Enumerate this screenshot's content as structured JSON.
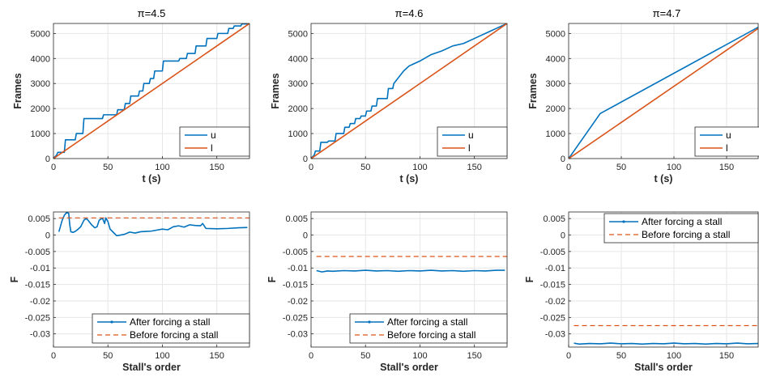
{
  "colors": {
    "blue": "#0072bd",
    "orange": "#d95319",
    "grid": "#e6e6e6",
    "axis": "#262626"
  },
  "chart_data": [
    {
      "type": "line",
      "title": "π=4.5",
      "xlabel": "t (s)",
      "ylabel": "Frames",
      "xlim": [
        0,
        180
      ],
      "ylim": [
        0,
        5400
      ],
      "xticks": [
        0,
        50,
        100,
        150
      ],
      "yticks": [
        0,
        1000,
        2000,
        3000,
        4000,
        5000
      ],
      "grid": true,
      "legend": "bottom-right",
      "series": [
        {
          "name": "u",
          "color": "#0072bd",
          "x": [
            0,
            3,
            4,
            10,
            11,
            20,
            21,
            27,
            28,
            40,
            41,
            45,
            46,
            58,
            59,
            65,
            66,
            70,
            71,
            78,
            79,
            82,
            83,
            88,
            89,
            92,
            93,
            100,
            101,
            115,
            116,
            122,
            123,
            130,
            131,
            140,
            141,
            150,
            151,
            160,
            161,
            165,
            166,
            172,
            173,
            178,
            180
          ],
          "y": [
            0,
            150,
            250,
            250,
            750,
            750,
            1000,
            1000,
            1600,
            1600,
            1600,
            1600,
            1750,
            1750,
            1950,
            1950,
            2200,
            2200,
            2500,
            2500,
            2700,
            2700,
            3000,
            3000,
            3200,
            3200,
            3500,
            3500,
            3900,
            3900,
            4000,
            4000,
            4200,
            4200,
            4500,
            4500,
            4800,
            4800,
            5000,
            5000,
            5200,
            5200,
            5300,
            5300,
            5380,
            5380,
            5400
          ]
        },
        {
          "name": "l",
          "color": "#d95319",
          "x": [
            0,
            180
          ],
          "y": [
            0,
            5400
          ]
        }
      ]
    },
    {
      "type": "line",
      "title": "π=4.6",
      "xlabel": "t (s)",
      "ylabel": "Frames",
      "xlim": [
        0,
        180
      ],
      "ylim": [
        0,
        5400
      ],
      "xticks": [
        0,
        50,
        100,
        150
      ],
      "yticks": [
        0,
        1000,
        2000,
        3000,
        4000,
        5000
      ],
      "grid": true,
      "legend": "bottom-right",
      "series": [
        {
          "name": "u",
          "color": "#0072bd",
          "x": [
            0,
            3,
            4,
            8,
            9,
            15,
            16,
            22,
            23,
            30,
            31,
            35,
            36,
            40,
            41,
            45,
            46,
            50,
            51,
            55,
            56,
            60,
            61,
            70,
            71,
            75,
            76,
            85,
            90,
            100,
            110,
            120,
            125,
            130,
            140,
            150,
            155,
            160,
            165,
            170,
            175,
            180
          ],
          "y": [
            0,
            150,
            300,
            300,
            650,
            650,
            700,
            700,
            1000,
            1000,
            1250,
            1250,
            1400,
            1400,
            1600,
            1600,
            1700,
            1700,
            1900,
            1900,
            2100,
            2100,
            2400,
            2400,
            2800,
            2800,
            3000,
            3500,
            3700,
            3900,
            4150,
            4300,
            4400,
            4500,
            4600,
            4800,
            4900,
            5000,
            5100,
            5200,
            5300,
            5400
          ]
        },
        {
          "name": "l",
          "color": "#d95319",
          "x": [
            0,
            180
          ],
          "y": [
            0,
            5400
          ]
        }
      ]
    },
    {
      "type": "line",
      "title": "π=4.7",
      "xlabel": "t (s)",
      "ylabel": "Frames",
      "xlim": [
        0,
        180
      ],
      "ylim": [
        0,
        5400
      ],
      "xticks": [
        0,
        50,
        100,
        150
      ],
      "yticks": [
        0,
        1000,
        2000,
        3000,
        4000,
        5000
      ],
      "grid": true,
      "legend": "bottom-right",
      "series": [
        {
          "name": "u",
          "color": "#0072bd",
          "x": [
            0,
            30,
            180
          ],
          "y": [
            0,
            1800,
            5250
          ]
        },
        {
          "name": "l",
          "color": "#d95319",
          "x": [
            0,
            180
          ],
          "y": [
            0,
            5200
          ]
        }
      ]
    },
    {
      "type": "line",
      "title": "",
      "xlabel": "Stall's order",
      "ylabel": "F",
      "xlim": [
        0,
        180
      ],
      "ylim": [
        -0.034,
        0.007
      ],
      "xticks": [
        0,
        50,
        100,
        150
      ],
      "yticks": [
        0.005,
        0,
        -0.005,
        -0.01,
        -0.015,
        -0.02,
        -0.025,
        -0.03
      ],
      "ytick_labels": [
        "0.005",
        "0",
        "-0.005",
        "-0.01",
        "-0.015",
        "-0.02",
        "-0.025",
        "-0.03"
      ],
      "grid": true,
      "legend": "bottom-center",
      "series": [
        {
          "name": "After forcing a stall",
          "color": "#0072bd",
          "style": "solid-dots",
          "x": [
            5,
            8,
            10,
            12,
            14,
            15,
            16,
            18,
            20,
            22,
            25,
            28,
            30,
            32,
            35,
            38,
            40,
            42,
            45,
            47,
            48,
            50,
            52,
            55,
            58,
            60,
            65,
            70,
            75,
            80,
            85,
            90,
            95,
            100,
            105,
            110,
            115,
            120,
            125,
            130,
            135,
            137,
            140,
            150,
            160,
            170,
            178
          ],
          "y": [
            0.001,
            0.0045,
            0.006,
            0.0068,
            0.0066,
            0.003,
            0.001,
            0.0008,
            0.0011,
            0.0016,
            0.0025,
            0.0045,
            0.005,
            0.0044,
            0.0031,
            0.0022,
            0.0025,
            0.0045,
            0.0051,
            0.0035,
            0.0052,
            0.0041,
            0.0018,
            0.0008,
            -0.0002,
            -0.0001,
            0.0002,
            0.0009,
            0.0006,
            0.001,
            0.0011,
            0.0012,
            0.0015,
            0.0018,
            0.0016,
            0.0025,
            0.0028,
            0.0024,
            0.0031,
            0.0029,
            0.0028,
            0.0035,
            0.002,
            0.0019,
            0.002,
            0.0022,
            0.0023
          ]
        },
        {
          "name": "Before forcing a stall",
          "color": "#d95319",
          "style": "dashed",
          "x": [
            5,
            180
          ],
          "y": [
            0.0052,
            0.0052
          ]
        }
      ]
    },
    {
      "type": "line",
      "title": "",
      "xlabel": "Stall's order",
      "ylabel": "F",
      "xlim": [
        0,
        180
      ],
      "ylim": [
        -0.034,
        0.007
      ],
      "xticks": [
        0,
        50,
        100,
        150
      ],
      "yticks": [
        0.005,
        0,
        -0.005,
        -0.01,
        -0.015,
        -0.02,
        -0.025,
        -0.03
      ],
      "ytick_labels": [
        "0.005",
        "0",
        "-0.005",
        "-0.01",
        "-0.015",
        "-0.02",
        "-0.025",
        "-0.03"
      ],
      "grid": true,
      "legend": "bottom-center",
      "series": [
        {
          "name": "After forcing a stall",
          "color": "#0072bd",
          "style": "solid-dots",
          "x": [
            5,
            10,
            15,
            20,
            30,
            40,
            50,
            60,
            70,
            80,
            90,
            100,
            110,
            120,
            130,
            140,
            150,
            160,
            170,
            178
          ],
          "y": [
            -0.0108,
            -0.0112,
            -0.0109,
            -0.011,
            -0.0108,
            -0.0109,
            -0.0107,
            -0.0109,
            -0.0108,
            -0.011,
            -0.0108,
            -0.0109,
            -0.0107,
            -0.0109,
            -0.0108,
            -0.011,
            -0.0108,
            -0.0109,
            -0.0107,
            -0.0107
          ]
        },
        {
          "name": "Before forcing a stall",
          "color": "#d95319",
          "style": "dashed",
          "x": [
            5,
            180
          ],
          "y": [
            -0.0065,
            -0.0065
          ]
        }
      ]
    },
    {
      "type": "line",
      "title": "",
      "xlabel": "Stall's order",
      "ylabel": "F",
      "xlim": [
        0,
        180
      ],
      "ylim": [
        -0.034,
        0.007
      ],
      "xticks": [
        0,
        50,
        100,
        150
      ],
      "yticks": [
        0.005,
        0,
        -0.005,
        -0.01,
        -0.015,
        -0.02,
        -0.025,
        -0.03
      ],
      "ytick_labels": [
        "0.005",
        "0",
        "-0.005",
        "-0.01",
        "-0.015",
        "-0.02",
        "-0.025",
        "-0.03"
      ],
      "grid": true,
      "legend": "top-right",
      "series": [
        {
          "name": "After forcing a stall",
          "color": "#0072bd",
          "style": "solid-dots",
          "x": [
            5,
            10,
            20,
            30,
            40,
            50,
            60,
            70,
            80,
            90,
            100,
            110,
            120,
            130,
            140,
            150,
            160,
            170,
            180
          ],
          "y": [
            -0.0328,
            -0.0331,
            -0.0329,
            -0.033,
            -0.0328,
            -0.033,
            -0.0329,
            -0.0331,
            -0.0329,
            -0.033,
            -0.0328,
            -0.033,
            -0.0329,
            -0.0331,
            -0.0329,
            -0.033,
            -0.0328,
            -0.033,
            -0.0329
          ]
        },
        {
          "name": "Before forcing a stall",
          "color": "#d95319",
          "style": "dashed",
          "x": [
            5,
            180
          ],
          "y": [
            -0.0275,
            -0.0275
          ]
        }
      ]
    }
  ]
}
